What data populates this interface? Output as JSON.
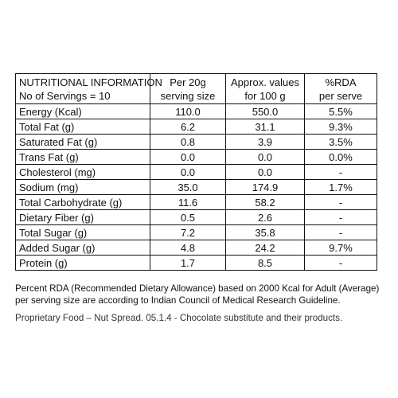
{
  "table": {
    "header": {
      "name_line1": "NUTRITIONAL INFORMATION",
      "name_line2": "No of Servings = 10",
      "col2_line1": "Per 20g",
      "col2_line2": "serving size",
      "col3_line1": "Approx. values",
      "col3_line2": "for 100 g",
      "col4_line1": "%RDA",
      "col4_line2": "per serve"
    },
    "rows": [
      {
        "name": "Energy (Kcal)",
        "per_serving": "110.0",
        "per_100g": "550.0",
        "rda": "5.5%"
      },
      {
        "name": "Total Fat (g)",
        "per_serving": "6.2",
        "per_100g": "31.1",
        "rda": "9.3%"
      },
      {
        "name": "Saturated Fat (g)",
        "per_serving": "0.8",
        "per_100g": "3.9",
        "rda": "3.5%"
      },
      {
        "name": "Trans Fat (g)",
        "per_serving": "0.0",
        "per_100g": "0.0",
        "rda": "0.0%"
      },
      {
        "name": "Cholesterol (mg)",
        "per_serving": "0.0",
        "per_100g": "0.0",
        "rda": "-"
      },
      {
        "name": "Sodium (mg)",
        "per_serving": "35.0",
        "per_100g": "174.9",
        "rda": "1.7%"
      },
      {
        "name": "Total Carbohydrate (g)",
        "per_serving": "11.6",
        "per_100g": "58.2",
        "rda": "-"
      },
      {
        "name": "Dietary Fiber (g)",
        "per_serving": "0.5",
        "per_100g": "2.6",
        "rda": "-"
      },
      {
        "name": "Total Sugar (g)",
        "per_serving": "7.2",
        "per_100g": "35.8",
        "rda": "-"
      },
      {
        "name": "Added Sugar (g)",
        "per_serving": "4.8",
        "per_100g": "24.2",
        "rda": "9.7%"
      },
      {
        "name": "Protein (g)",
        "per_serving": "1.7",
        "per_100g": "8.5",
        "rda": "-"
      }
    ]
  },
  "footnote": {
    "rda_line1": "Percent RDA (Recommended Dietary Allowance) based on 2000 Kcal for Adult (Average)",
    "rda_line2": "per serving size are according to Indian Council of Medical Research Guideline.",
    "proprietary": "Proprietary Food – Nut Spread. 05.1.4 - Chocolate substitute and their products."
  }
}
